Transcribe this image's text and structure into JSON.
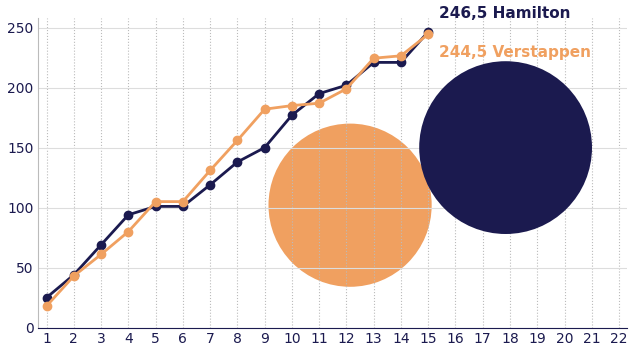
{
  "chart_data": {
    "type": "line",
    "x": [
      1,
      2,
      3,
      4,
      5,
      6,
      7,
      8,
      9,
      10,
      11,
      12,
      13,
      14,
      15
    ],
    "series": [
      {
        "name": "Hamilton",
        "color": "#1b1a4f",
        "marker": "o",
        "line_style": "solid",
        "values": [
          25,
          44,
          69,
          94,
          101,
          101,
          119,
          138,
          150,
          177,
          195,
          202,
          221,
          221,
          246.5
        ]
      },
      {
        "name": "Verstappen",
        "color": "#f0a060",
        "marker": "o",
        "line_style": "solid",
        "values": [
          18,
          43,
          61,
          80,
          105,
          105,
          131,
          156,
          182,
          185,
          187,
          199,
          224.5,
          226.5,
          244.5
        ]
      }
    ],
    "annotations": [
      {
        "series": "Hamilton",
        "text": "246,5 Hamilton"
      },
      {
        "series": "Verstappen",
        "text": "244,5 Verstappen"
      }
    ],
    "xlim": [
      0.7,
      22.3
    ],
    "xticks": [
      1,
      2,
      3,
      4,
      5,
      6,
      7,
      8,
      9,
      10,
      11,
      12,
      13,
      14,
      15,
      16,
      17,
      18,
      19,
      20,
      21,
      22
    ],
    "ylim": [
      0,
      258
    ],
    "yticks": [
      0,
      50,
      100,
      150,
      200,
      250
    ],
    "grid": true
  }
}
